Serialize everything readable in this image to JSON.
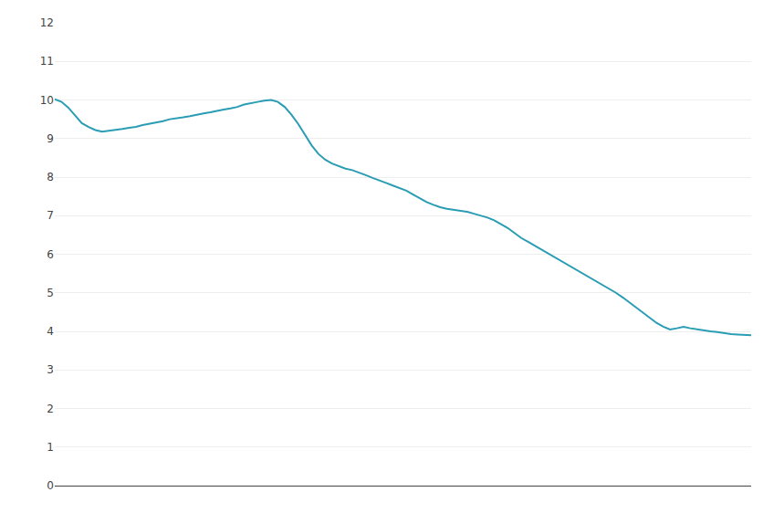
{
  "chart_data": {
    "type": "line",
    "values": [
      10.02,
      9.95,
      9.8,
      9.6,
      9.4,
      9.3,
      9.22,
      9.18,
      9.2,
      9.22,
      9.25,
      9.28,
      9.3,
      9.35,
      9.38,
      9.42,
      9.45,
      9.5,
      9.52,
      9.55,
      9.58,
      9.62,
      9.65,
      9.68,
      9.72,
      9.75,
      9.78,
      9.82,
      9.88,
      9.92,
      9.95,
      9.98,
      10.0,
      9.95,
      9.82,
      9.62,
      9.38,
      9.1,
      8.82,
      8.6,
      8.45,
      8.35,
      8.28,
      8.22,
      8.18,
      8.12,
      8.05,
      7.98,
      7.92,
      7.85,
      7.78,
      7.72,
      7.65,
      7.55,
      7.45,
      7.35,
      7.28,
      7.22,
      7.18,
      7.15,
      7.12,
      7.1,
      7.05,
      7.0,
      6.95,
      6.88,
      6.78,
      6.68,
      6.55,
      6.42,
      6.32,
      6.22,
      6.12,
      6.02,
      5.92,
      5.82,
      5.72,
      5.62,
      5.52,
      5.42,
      5.32,
      5.22,
      5.12,
      5.0,
      4.88,
      4.75,
      4.62,
      4.48,
      4.35,
      4.22,
      4.12,
      4.05,
      4.08,
      4.12,
      4.08,
      4.05,
      4.02,
      4.0,
      3.98,
      3.95,
      3.93,
      3.92,
      3.91,
      3.9
    ],
    "color": "#2a9db5",
    "ylim": [
      0,
      12
    ],
    "yticks": [
      0,
      1,
      2,
      3,
      4,
      5,
      6,
      7,
      8,
      9,
      10,
      11,
      12
    ],
    "grid": true,
    "tick_labels": "y"
  }
}
